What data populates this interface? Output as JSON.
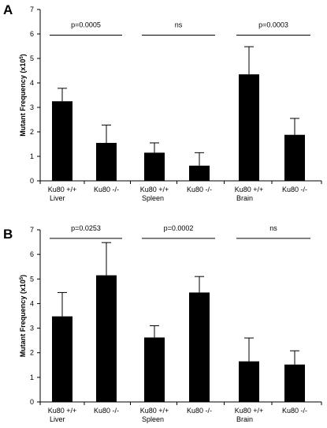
{
  "figure_panels": [
    {
      "panel_label": "A",
      "chart_data": {
        "type": "bar",
        "categories": [
          [
            "Ku80 +/+",
            "Liver"
          ],
          [
            "Ku80 -/-",
            ""
          ],
          [
            "Ku80 +/+",
            "Spleen"
          ],
          [
            "Ku80 -/-",
            ""
          ],
          [
            "Ku80 +/+",
            "Brain"
          ],
          [
            "Ku80 -/-",
            ""
          ]
        ],
        "values": [
          3.25,
          1.55,
          1.15,
          0.62,
          4.35,
          1.88
        ],
        "error_upper": [
          3.78,
          2.28,
          1.55,
          1.15,
          5.48,
          2.55
        ],
        "ylabel": "Mutant Frequency (x10",
        "ylabel_superscript": "5",
        "ylabel_suffix": ")",
        "ylim": [
          0,
          7
        ],
        "yticks": [
          "0",
          "1",
          "2",
          "3",
          "4",
          "5",
          "6",
          "7"
        ],
        "comparisons": [
          {
            "label": "p=0.0005",
            "pair": [
              0,
              1
            ],
            "y": 5.95
          },
          {
            "label": "ns",
            "pair": [
              2,
              3
            ],
            "y": 5.95
          },
          {
            "label": "p=0.0003",
            "pair": [
              4,
              5
            ],
            "y": 5.95
          }
        ],
        "bar_color": "#000000"
      }
    },
    {
      "panel_label": "B",
      "chart_data": {
        "type": "bar",
        "categories": [
          [
            "Ku80 +/+",
            "Liver"
          ],
          [
            "Ku80 -/-",
            ""
          ],
          [
            "Ku80 +/+",
            "Spleen"
          ],
          [
            "Ku80 -/-",
            ""
          ],
          [
            "Ku80 +/+",
            "Brain"
          ],
          [
            "Ku80 -/-",
            ""
          ]
        ],
        "values": [
          3.48,
          5.15,
          2.62,
          4.45,
          1.65,
          1.52
        ],
        "error_upper": [
          4.45,
          6.48,
          3.1,
          5.1,
          2.6,
          2.08
        ],
        "ylabel": "Mutant Frequency (x10",
        "ylabel_superscript": "5",
        "ylabel_suffix": ")",
        "ylim": [
          0,
          7
        ],
        "yticks": [
          "0",
          "1",
          "2",
          "3",
          "4",
          "5",
          "6",
          "7"
        ],
        "comparisons": [
          {
            "label": "p=0.0253",
            "pair": [
              0,
              1
            ],
            "y": 6.65
          },
          {
            "label": "p=0.0002",
            "pair": [
              2,
              3
            ],
            "y": 6.65
          },
          {
            "label": "ns",
            "pair": [
              4,
              5
            ],
            "y": 6.65
          }
        ],
        "bar_color": "#000000"
      }
    }
  ]
}
